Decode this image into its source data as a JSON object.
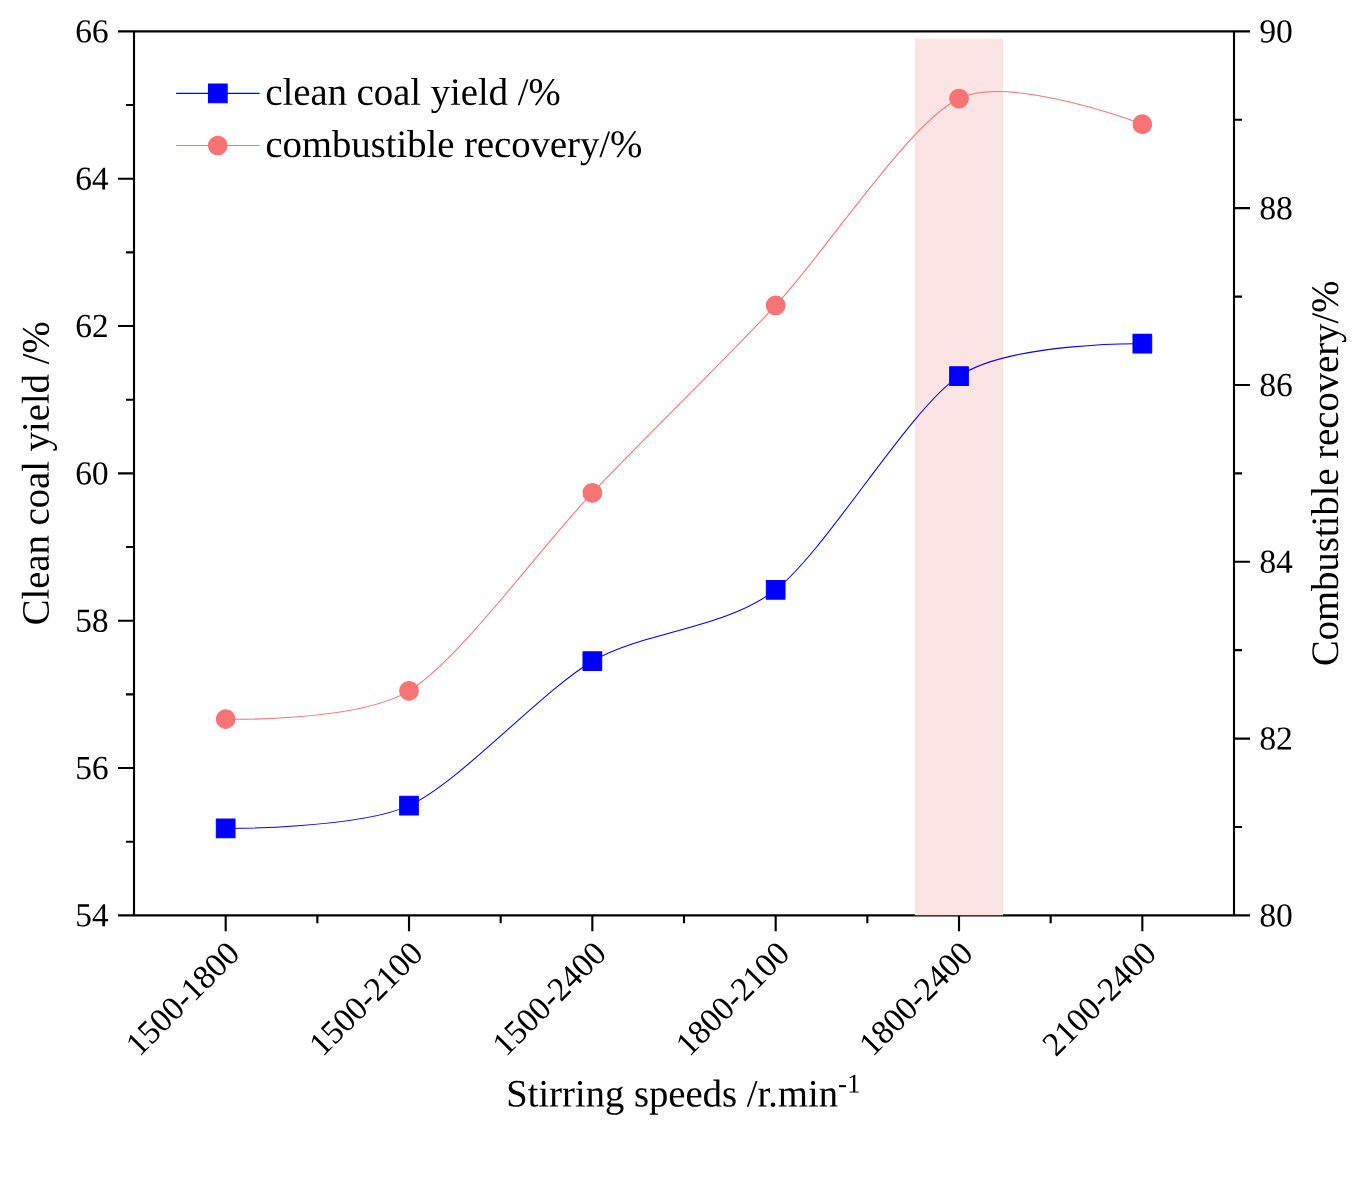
{
  "chart_data": {
    "type": "line",
    "categories": [
      "1500-1800",
      "1500-2100",
      "1500-2400",
      "1800-2100",
      "1800-2400",
      "2100-2400"
    ],
    "xlabel": "Stirring speeds /r.min$^{-1}$",
    "ylabel": "Clean coal yield /%",
    "y2label": "Combustible recovery/%",
    "ylim": [
      54,
      66
    ],
    "yticks": [
      54,
      56,
      58,
      60,
      62,
      64,
      66
    ],
    "y2lim": [
      80,
      90
    ],
    "y2ticks": [
      80,
      82,
      84,
      86,
      88,
      90
    ],
    "legend": "top left",
    "bands": [
      {
        "axis": "x",
        "from": "1800-2400",
        "to": "1800-2400",
        "color": "#fce4e4"
      }
    ],
    "series": [
      {
        "name": "clean coal yield /%",
        "color": "#0000ff",
        "marker": "square",
        "values": [
          55.18,
          55.49,
          57.45,
          58.42,
          61.32,
          61.76
        ]
      },
      {
        "name": "combustible recovery/%",
        "color": "#f87474",
        "marker": "circle",
        "axis": "y2",
        "values": [
          82.22,
          82.54,
          84.78,
          86.9,
          89.24,
          88.95
        ]
      }
    ]
  }
}
